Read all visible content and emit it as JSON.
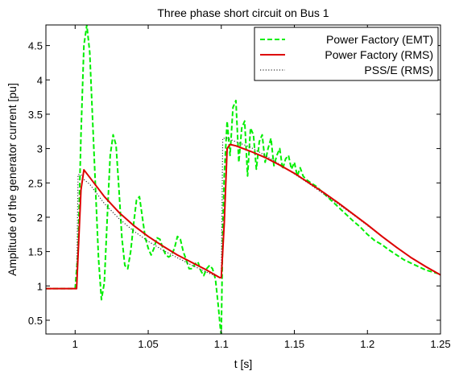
{
  "chart_data": {
    "type": "line",
    "title": "Three phase short circuit on Bus 1",
    "xlabel": "t [s]",
    "ylabel": "Amplitude of the generator current [pu]",
    "xlim": [
      0.98,
      1.25
    ],
    "ylim": [
      0.3,
      4.8
    ],
    "xticks": [
      1,
      1.05,
      1.1,
      1.15,
      1.2,
      1.25
    ],
    "xtick_labels": [
      "1",
      "1.05",
      "1.1",
      "1.15",
      "1.2",
      "1.25"
    ],
    "yticks": [
      0.5,
      1,
      1.5,
      2,
      2.5,
      3,
      3.5,
      4,
      4.5
    ],
    "ytick_labels": [
      "0.5",
      "1",
      "1.5",
      "2",
      "2.5",
      "3",
      "3.5",
      "4",
      "4.5"
    ],
    "grid": false,
    "legend_position": "top-right",
    "series": [
      {
        "name": "Power Factory (EMT)",
        "color": "#00ee00",
        "style": "dashed",
        "x": [
          0.98,
          1.0,
          1.002,
          1.004,
          1.006,
          1.008,
          1.01,
          1.012,
          1.014,
          1.016,
          1.018,
          1.02,
          1.022,
          1.024,
          1.026,
          1.028,
          1.03,
          1.032,
          1.034,
          1.036,
          1.038,
          1.04,
          1.042,
          1.044,
          1.046,
          1.048,
          1.05,
          1.052,
          1.054,
          1.056,
          1.058,
          1.06,
          1.062,
          1.064,
          1.066,
          1.068,
          1.07,
          1.072,
          1.074,
          1.076,
          1.078,
          1.08,
          1.082,
          1.084,
          1.086,
          1.088,
          1.09,
          1.092,
          1.094,
          1.096,
          1.098,
          1.0995,
          1.1,
          1.101,
          1.102,
          1.104,
          1.106,
          1.108,
          1.11,
          1.112,
          1.114,
          1.116,
          1.118,
          1.12,
          1.122,
          1.124,
          1.126,
          1.128,
          1.13,
          1.132,
          1.134,
          1.136,
          1.138,
          1.14,
          1.142,
          1.144,
          1.146,
          1.148,
          1.15,
          1.152,
          1.154,
          1.156,
          1.158,
          1.16,
          1.165,
          1.17,
          1.175,
          1.18,
          1.185,
          1.19,
          1.195,
          1.2,
          1.205,
          1.21,
          1.215,
          1.22,
          1.225,
          1.23,
          1.235,
          1.24,
          1.245,
          1.25
        ],
        "y": [
          0.96,
          0.96,
          1.5,
          3.2,
          4.5,
          4.8,
          4.4,
          3.4,
          2.4,
          1.4,
          0.8,
          1.05,
          2.0,
          2.9,
          3.2,
          3.05,
          2.4,
          1.7,
          1.3,
          1.25,
          1.5,
          1.9,
          2.25,
          2.3,
          2.0,
          1.7,
          1.55,
          1.45,
          1.55,
          1.7,
          1.68,
          1.55,
          1.45,
          1.42,
          1.45,
          1.55,
          1.72,
          1.68,
          1.5,
          1.38,
          1.25,
          1.25,
          1.32,
          1.35,
          1.22,
          1.15,
          1.25,
          1.3,
          1.25,
          1.1,
          0.7,
          0.35,
          0.3,
          1.8,
          2.6,
          3.4,
          2.9,
          3.6,
          3.7,
          2.8,
          3.3,
          3.4,
          2.6,
          3.3,
          3.2,
          2.7,
          3.1,
          3.2,
          2.8,
          3.0,
          3.15,
          2.75,
          2.9,
          3.0,
          2.7,
          2.85,
          2.9,
          2.7,
          2.8,
          2.6,
          2.72,
          2.6,
          2.55,
          2.52,
          2.45,
          2.35,
          2.25,
          2.15,
          2.05,
          1.95,
          1.86,
          1.75,
          1.66,
          1.6,
          1.52,
          1.45,
          1.38,
          1.33,
          1.28,
          1.23,
          1.2,
          1.17
        ]
      },
      {
        "name": "Power Factory (RMS)",
        "color": "#dd0000",
        "style": "solid",
        "x": [
          0.98,
          1.0,
          1.001,
          1.004,
          1.006,
          1.01,
          1.02,
          1.03,
          1.04,
          1.05,
          1.06,
          1.07,
          1.08,
          1.09,
          1.099,
          1.1,
          1.102,
          1.104,
          1.106,
          1.11,
          1.12,
          1.13,
          1.14,
          1.15,
          1.16,
          1.17,
          1.18,
          1.19,
          1.2,
          1.21,
          1.22,
          1.23,
          1.24,
          1.25
        ],
        "y": [
          0.96,
          0.96,
          0.96,
          2.4,
          2.69,
          2.58,
          2.3,
          2.07,
          1.88,
          1.72,
          1.58,
          1.45,
          1.34,
          1.23,
          1.12,
          1.12,
          1.9,
          3.0,
          3.06,
          3.04,
          2.96,
          2.87,
          2.76,
          2.64,
          2.5,
          2.36,
          2.21,
          2.05,
          1.89,
          1.72,
          1.56,
          1.41,
          1.28,
          1.16
        ]
      },
      {
        "name": "PSS/E (RMS)",
        "color": "#333333",
        "style": "dotted",
        "x": [
          0.98,
          1.0,
          1.001,
          1.002,
          1.004,
          1.006,
          1.01,
          1.02,
          1.03,
          1.04,
          1.05,
          1.06,
          1.07,
          1.08,
          1.09,
          1.099,
          1.1,
          1.101,
          1.102,
          1.104,
          1.11,
          1.12,
          1.13,
          1.14,
          1.15,
          1.16,
          1.17,
          1.18,
          1.19,
          1.2,
          1.21,
          1.22,
          1.23,
          1.24,
          1.25
        ],
        "y": [
          0.96,
          0.96,
          0.96,
          2.62,
          2.62,
          2.55,
          2.48,
          2.2,
          1.98,
          1.8,
          1.65,
          1.52,
          1.41,
          1.3,
          1.2,
          1.12,
          1.12,
          3.15,
          3.15,
          3.15,
          3.1,
          3.02,
          2.9,
          2.77,
          2.63,
          2.49,
          2.34,
          2.19,
          2.04,
          1.88,
          1.72,
          1.56,
          1.41,
          1.28,
          1.16
        ]
      }
    ]
  }
}
